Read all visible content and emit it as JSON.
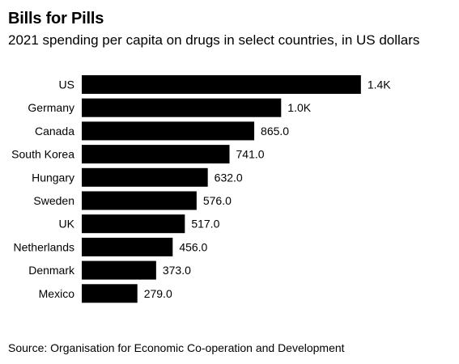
{
  "chart_data": {
    "type": "bar",
    "orientation": "horizontal",
    "title": "Bills for Pills",
    "subtitle": "2021 spending per capita on drugs in select countries, in US dollars",
    "categories": [
      "US",
      "Germany",
      "Canada",
      "South Korea",
      "Hungary",
      "Sweden",
      "UK",
      "Netherlands",
      "Denmark",
      "Mexico"
    ],
    "values": [
      1400,
      1000,
      865.0,
      741.0,
      632.0,
      576.0,
      517.0,
      456.0,
      373.0,
      279.0
    ],
    "data_labels": [
      "1.4K",
      "1.0K",
      "865.0",
      "741.0",
      "632.0",
      "576.0",
      "517.0",
      "456.0",
      "373.0",
      "279.0"
    ],
    "bar_color": "#000000",
    "grid": false,
    "source": "Source: Organisation for Economic Co-operation and Development"
  }
}
